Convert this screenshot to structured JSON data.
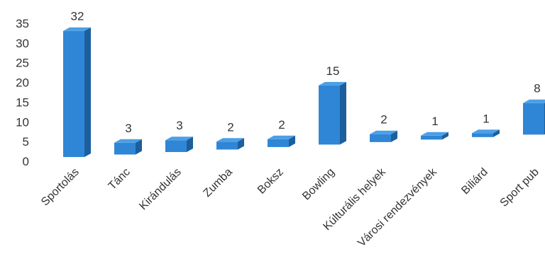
{
  "chart_data": {
    "type": "bar",
    "categories": [
      "Sportolás",
      "Tánc",
      "Kirándulás",
      "Zumba",
      "Boksz",
      "Bowling",
      "Kúlturális helyek",
      "Városi rendezvények",
      "Biliárd",
      "Sport pub"
    ],
    "values": [
      32,
      3,
      3,
      2,
      2,
      15,
      2,
      1,
      1,
      8
    ],
    "data_labels": [
      "32",
      "3",
      "3",
      "2",
      "2",
      "15",
      "2",
      "1",
      "1",
      "8"
    ],
    "yticks": [
      "0",
      "5",
      "10",
      "15",
      "20",
      "25",
      "30",
      "35"
    ],
    "ylim": [
      0,
      35
    ],
    "grid": false,
    "legend": "none",
    "bar_style": "3d",
    "colors": {
      "bar_front": "#2f86d6",
      "bar_top": "#4b9fe6",
      "bar_side": "#1d5f9c",
      "text": "#333333"
    }
  }
}
